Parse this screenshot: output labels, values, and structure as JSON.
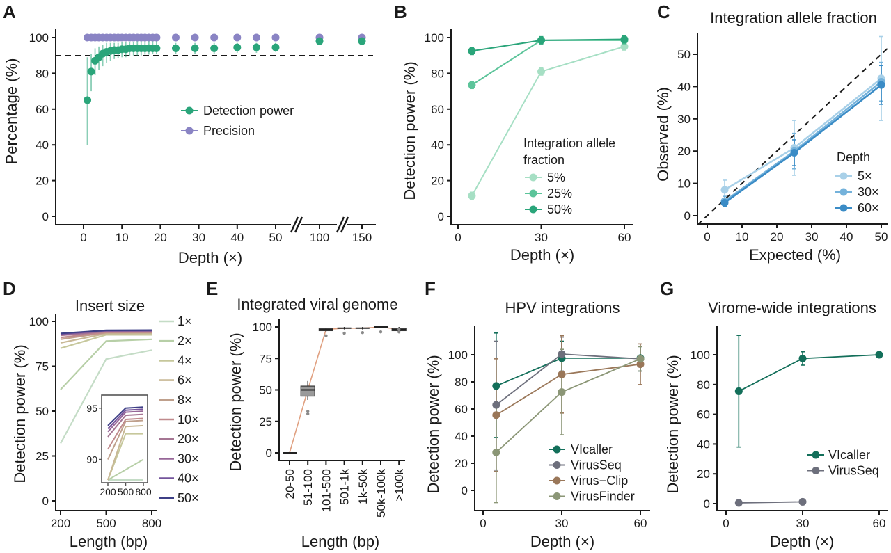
{
  "colors": {
    "green": "#2aa57a",
    "purple": "#8a84c4",
    "b5": "#a6dfc4",
    "b25": "#5cc49a",
    "b50": "#2aa57a",
    "c5": "#a8d0e8",
    "c30": "#74b2db",
    "c60": "#3b8cc6",
    "vicaller": "#136f5a",
    "virusseq": "#6d6f7c",
    "virusclip": "#9a7759",
    "virusfinder": "#8b9676",
    "box": "#9a9a9a",
    "boxline": "#e0a080"
  },
  "chart_data": [
    {
      "panel": "A",
      "type": "scatter",
      "title": "",
      "xlabel": "Depth (×)",
      "ylabel": "Percentage (%)",
      "xticks": [
        "0",
        "10",
        "20",
        "30",
        "40",
        "50",
        "100",
        "150"
      ],
      "yticks": [
        "0",
        "20",
        "40",
        "60",
        "80",
        "100"
      ],
      "ylim": [
        0,
        100
      ],
      "reference_line": 90,
      "legend_position": "center-right",
      "series": [
        {
          "name": "Detection power",
          "points": [
            {
              "x": 1,
              "y": 65,
              "lo": 40,
              "hi": 89
            },
            {
              "x": 2,
              "y": 81,
              "lo": 70,
              "hi": 91
            },
            {
              "x": 3,
              "y": 87,
              "lo": 79,
              "hi": 94
            },
            {
              "x": 4,
              "y": 89,
              "lo": 82,
              "hi": 95
            },
            {
              "x": 5,
              "y": 91,
              "lo": 84,
              "hi": 96
            },
            {
              "x": 6,
              "y": 92,
              "lo": 86,
              "hi": 97
            },
            {
              "x": 7,
              "y": 92.5,
              "lo": 87,
              "hi": 97
            },
            {
              "x": 8,
              "y": 93,
              "lo": 88,
              "hi": 97
            },
            {
              "x": 9,
              "y": 93,
              "lo": 88.5,
              "hi": 97
            },
            {
              "x": 10,
              "y": 93.5,
              "lo": 89,
              "hi": 97.5
            },
            {
              "x": 11,
              "y": 93.5,
              "lo": 89,
              "hi": 97.5
            },
            {
              "x": 12,
              "y": 94,
              "lo": 89.5,
              "hi": 97.5
            },
            {
              "x": 13,
              "y": 94,
              "lo": 90,
              "hi": 97.5
            },
            {
              "x": 14,
              "y": 94,
              "lo": 90,
              "hi": 98
            },
            {
              "x": 15,
              "y": 94,
              "lo": 90,
              "hi": 98
            },
            {
              "x": 16,
              "y": 94,
              "lo": 90.5,
              "hi": 98
            },
            {
              "x": 17,
              "y": 94,
              "lo": 90.5,
              "hi": 98
            },
            {
              "x": 18,
              "y": 94,
              "lo": 91,
              "hi": 98
            },
            {
              "x": 19,
              "y": 94,
              "lo": 91,
              "hi": 98
            },
            {
              "x": 24,
              "y": 94,
              "lo": 91,
              "hi": 97
            },
            {
              "x": 29,
              "y": 94,
              "lo": 91,
              "hi": 97
            },
            {
              "x": 34,
              "y": 94,
              "lo": 91,
              "hi": 97
            },
            {
              "x": 40,
              "y": 94.5,
              "lo": 91.5,
              "hi": 97
            },
            {
              "x": 45,
              "y": 94.5,
              "lo": 91.5,
              "hi": 97
            },
            {
              "x": 50,
              "y": 94.5,
              "lo": 92,
              "hi": 97
            },
            {
              "x": 100,
              "y": 98,
              "lo": 96.5,
              "hi": 99.5
            },
            {
              "x": 150,
              "y": 98,
              "lo": 96.5,
              "hi": 99.5
            }
          ]
        },
        {
          "name": "Precision",
          "points": [
            {
              "x": 1,
              "y": 100
            },
            {
              "x": 2,
              "y": 100
            },
            {
              "x": 3,
              "y": 100
            },
            {
              "x": 4,
              "y": 100
            },
            {
              "x": 5,
              "y": 100
            },
            {
              "x": 6,
              "y": 100
            },
            {
              "x": 7,
              "y": 100
            },
            {
              "x": 8,
              "y": 100
            },
            {
              "x": 9,
              "y": 100
            },
            {
              "x": 10,
              "y": 100
            },
            {
              "x": 11,
              "y": 100
            },
            {
              "x": 12,
              "y": 100
            },
            {
              "x": 13,
              "y": 100
            },
            {
              "x": 14,
              "y": 100
            },
            {
              "x": 15,
              "y": 100
            },
            {
              "x": 16,
              "y": 100
            },
            {
              "x": 17,
              "y": 100
            },
            {
              "x": 18,
              "y": 100
            },
            {
              "x": 19,
              "y": 100
            },
            {
              "x": 24,
              "y": 100
            },
            {
              "x": 29,
              "y": 100
            },
            {
              "x": 34,
              "y": 100
            },
            {
              "x": 40,
              "y": 100
            },
            {
              "x": 45,
              "y": 100
            },
            {
              "x": 50,
              "y": 100
            },
            {
              "x": 100,
              "y": 100
            },
            {
              "x": 150,
              "y": 100
            }
          ]
        }
      ]
    },
    {
      "panel": "B",
      "type": "line",
      "title": "",
      "xlabel": "Depth (×)",
      "ylabel": "Detection power (%)",
      "xticks": [
        "0",
        "30",
        "60"
      ],
      "yticks": [
        "0",
        "20",
        "40",
        "60",
        "80",
        "100"
      ],
      "xlim": [
        0,
        60
      ],
      "ylim": [
        0,
        100
      ],
      "legend_title": "Integration allele fraction",
      "legend_position": "bottom-right",
      "series": [
        {
          "name": "5%",
          "x": [
            5,
            30,
            60
          ],
          "y": [
            11.5,
            81,
            95
          ]
        },
        {
          "name": "25%",
          "x": [
            5,
            30,
            60
          ],
          "y": [
            73.5,
            98.5,
            98.5
          ]
        },
        {
          "name": "50%",
          "x": [
            5,
            30,
            60
          ],
          "y": [
            92.5,
            98.5,
            99
          ]
        }
      ]
    },
    {
      "panel": "C",
      "type": "line",
      "title": "Integration allele fraction",
      "xlabel": "Expected (%)",
      "ylabel": "Observed (%)",
      "xticks": [
        "0",
        "10",
        "20",
        "30",
        "40",
        "50"
      ],
      "yticks": [
        "0",
        "10",
        "20",
        "30",
        "40",
        "50"
      ],
      "xlim": [
        0,
        50
      ],
      "ylim": [
        0,
        55
      ],
      "reference_line": "y = x",
      "legend_title": "Depth",
      "legend_position": "bottom-right",
      "series": [
        {
          "name": "5×",
          "x": [
            5,
            25,
            50
          ],
          "y": [
            8,
            21,
            42.5
          ],
          "err": [
            3,
            8.5,
            13
          ]
        },
        {
          "name": "30×",
          "x": [
            5,
            25,
            50
          ],
          "y": [
            4.5,
            20,
            41.5
          ],
          "err": [
            1.5,
            5.5,
            6
          ]
        },
        {
          "name": "60×",
          "x": [
            5,
            25,
            50
          ],
          "y": [
            4,
            19.5,
            40.5
          ],
          "err": [
            1.2,
            4,
            6
          ]
        }
      ]
    },
    {
      "panel": "D",
      "type": "line",
      "title": "Insert size",
      "xlabel": "Length (bp)",
      "ylabel": "Detection power (%)",
      "xticks": [
        "200",
        "500",
        "800"
      ],
      "yticks": [
        "0",
        "25",
        "50",
        "75",
        "100"
      ],
      "xlim": [
        200,
        800
      ],
      "ylim": [
        0,
        100
      ],
      "legend_position": "right",
      "inset": {
        "xticks": [
          "200",
          "500",
          "800"
        ],
        "yticks": [
          "90",
          "95"
        ],
        "ylim": [
          88,
          96
        ]
      },
      "series": [
        {
          "name": "1×",
          "x": [
            200,
            500,
            800
          ],
          "y": [
            32,
            79,
            84
          ]
        },
        {
          "name": "2×",
          "x": [
            200,
            500,
            800
          ],
          "y": [
            62,
            89,
            90
          ]
        },
        {
          "name": "4×",
          "x": [
            200,
            500,
            800
          ],
          "y": [
            85,
            92.5,
            92.5
          ]
        },
        {
          "name": "6×",
          "x": [
            200,
            500,
            800
          ],
          "y": [
            88,
            93.2,
            93.3
          ]
        },
        {
          "name": "8×",
          "x": [
            200,
            500,
            800
          ],
          "y": [
            90,
            93.7,
            93.8
          ]
        },
        {
          "name": "10×",
          "x": [
            200,
            500,
            800
          ],
          "y": [
            91,
            93.9,
            94.0
          ]
        },
        {
          "name": "20×",
          "x": [
            200,
            500,
            800
          ],
          "y": [
            92.2,
            94.3,
            94.4
          ]
        },
        {
          "name": "30×",
          "x": [
            200,
            500,
            800
          ],
          "y": [
            92.7,
            94.6,
            94.7
          ]
        },
        {
          "name": "40×",
          "x": [
            200,
            500,
            800
          ],
          "y": [
            93.0,
            94.8,
            94.9
          ]
        },
        {
          "name": "50×",
          "x": [
            200,
            500,
            800
          ],
          "y": [
            93.3,
            95.0,
            95.1
          ]
        }
      ]
    },
    {
      "panel": "E",
      "type": "bar",
      "title": "Integrated viral genome",
      "xlabel": "Length (bp)",
      "ylabel": "Detection power (%)",
      "categories": [
        "20-50",
        "51-100",
        "101-500",
        "501-1k",
        "1k-50k",
        "50k-100k",
        ">100k"
      ],
      "yticks": [
        "0",
        "25",
        "50",
        "75",
        "100"
      ],
      "ylim": [
        0,
        100
      ],
      "boxes": [
        {
          "category": "20-50",
          "median": 0,
          "q1": 0,
          "q3": 0,
          "min": 0,
          "max": 0
        },
        {
          "category": "51-100",
          "median": 50,
          "q1": 45,
          "q3": 53,
          "min": 42,
          "max": 57,
          "outliers": [
            31,
            33
          ]
        },
        {
          "category": "101-500",
          "median": 98,
          "q1": 97,
          "q3": 98.5,
          "min": 96,
          "max": 99,
          "outliers": [
            93
          ]
        },
        {
          "category": "501-1k",
          "median": 99,
          "q1": 98.5,
          "q3": 99.5,
          "min": 98,
          "max": 100,
          "outliers": [
            95
          ]
        },
        {
          "category": "1k-50k",
          "median": 99,
          "q1": 98.5,
          "q3": 99.5,
          "min": 98,
          "max": 100,
          "outliers": [
            95.5
          ]
        },
        {
          "category": "50k-100k",
          "median": 100,
          "q1": 99.5,
          "q3": 100,
          "min": 99,
          "max": 100,
          "outliers": [
            96
          ]
        },
        {
          "category": ">100k",
          "median": 98,
          "q1": 97,
          "q3": 99,
          "min": 95,
          "max": 100,
          "outliers": [
            96,
            98
          ]
        }
      ]
    },
    {
      "panel": "F",
      "type": "line",
      "title": "HPV integrations",
      "xlabel": "Depth (×)",
      "ylabel": "Detection power (%)",
      "xticks": [
        "0",
        "30",
        "60"
      ],
      "yticks": [
        "0",
        "20",
        "40",
        "60",
        "80",
        "100"
      ],
      "xlim": [
        0,
        60
      ],
      "ylim": [
        -15,
        118
      ],
      "legend_position": "bottom-right",
      "series": [
        {
          "name": "VIcaller",
          "x": [
            5,
            30,
            60
          ],
          "y": [
            77,
            97.5,
            97.5
          ],
          "lo": [
            39,
            85,
            88
          ],
          "hi": [
            116,
            110,
            106
          ]
        },
        {
          "name": "VirusSeq",
          "x": [
            5,
            30,
            60
          ],
          "y": [
            63,
            100.5,
            97
          ],
          "lo": [
            15,
            88,
            88
          ],
          "hi": [
            110,
            113,
            106
          ]
        },
        {
          "name": "Virus−Clip",
          "x": [
            5,
            30,
            60
          ],
          "y": [
            55.5,
            85.5,
            93
          ],
          "lo": [
            14,
            57,
            78
          ],
          "hi": [
            97,
            114,
            108
          ]
        },
        {
          "name": "VirusFinder",
          "x": [
            5,
            30,
            60
          ],
          "y": [
            28,
            72.5,
            97
          ],
          "lo": [
            -9,
            41,
            88
          ],
          "hi": [
            64,
            104,
            106
          ]
        }
      ]
    },
    {
      "panel": "G",
      "type": "line",
      "title": "Virome-wide integrations",
      "xlabel": "Depth (×)",
      "ylabel": "Detection power (%)",
      "xticks": [
        "0",
        "30",
        "60"
      ],
      "yticks": [
        "0",
        "20",
        "40",
        "60",
        "80",
        "100"
      ],
      "xlim": [
        0,
        60
      ],
      "ylim": [
        -3,
        118
      ],
      "legend_position": "bottom-right",
      "series": [
        {
          "name": "VIcaller",
          "x": [
            5,
            30,
            60
          ],
          "y": [
            75.5,
            97.5,
            100
          ],
          "lo": [
            38,
            93,
            99.5
          ],
          "hi": [
            113,
            102,
            100.5
          ]
        },
        {
          "name": "VirusSeq",
          "x": [
            5,
            30,
            60
          ],
          "y": [
            0.5,
            1.2,
            null
          ]
        }
      ]
    }
  ]
}
